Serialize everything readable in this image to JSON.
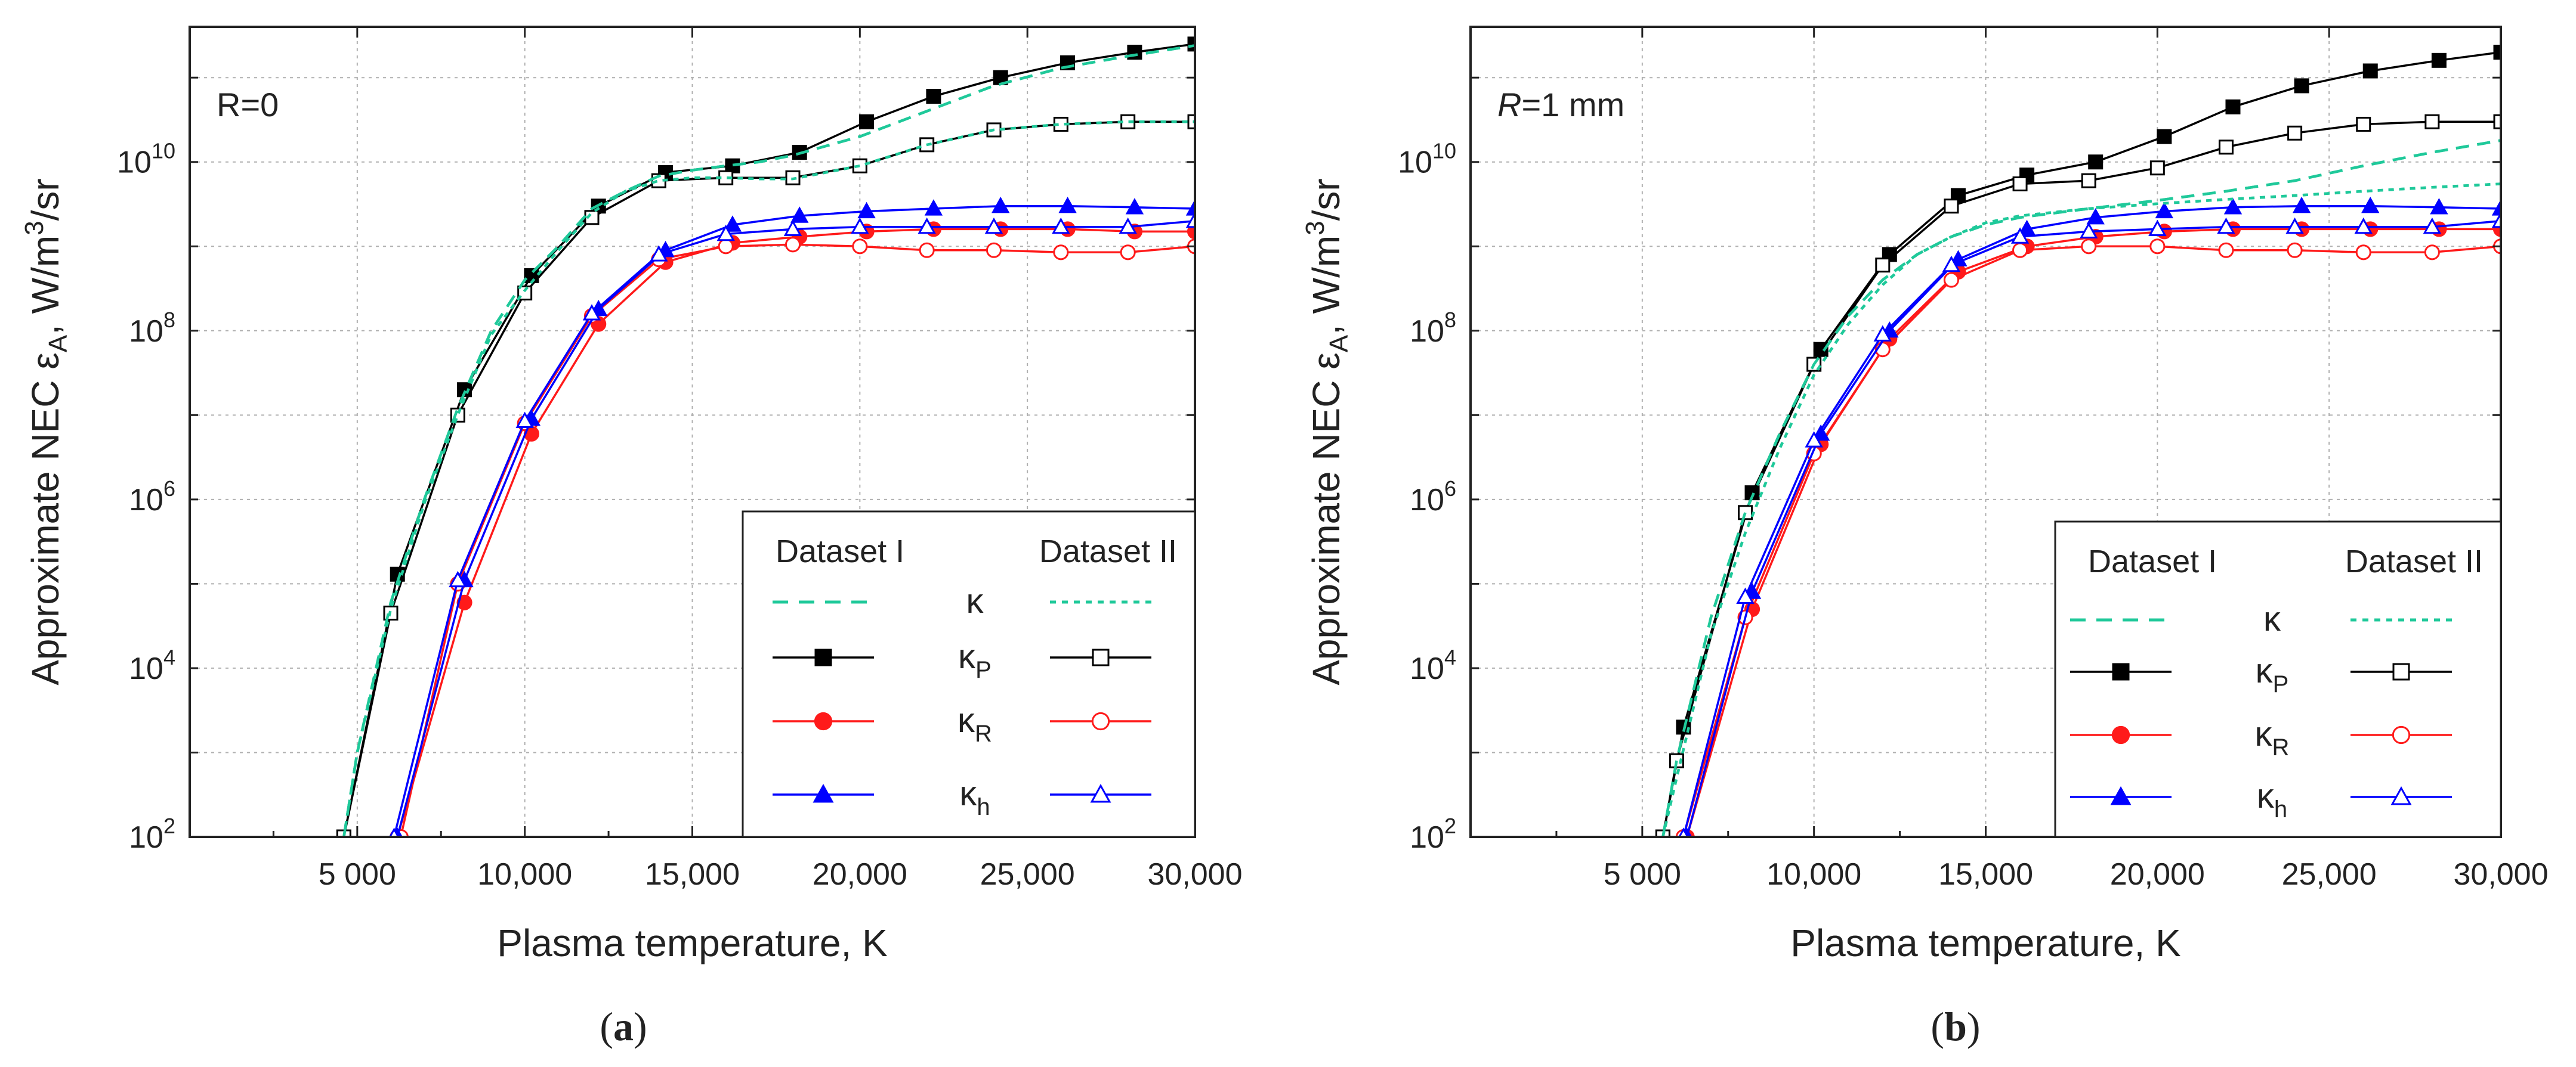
{
  "figure": {
    "captions": [
      "(a)",
      "(b)"
    ],
    "caption_letters": [
      "a",
      "b"
    ]
  },
  "legend": {
    "header_left": "Dataset I",
    "header_right": "Dataset II",
    "symbols": [
      "κ",
      "κP",
      "κR",
      "κh"
    ],
    "symbol_base": "κ",
    "symbol_subscripts": [
      "",
      "P",
      "R",
      "h"
    ]
  },
  "axis_labels": {
    "x": "Plasma temperature, K",
    "y_prefix": "Approximate NEC ε",
    "y_subscript": "A",
    "y_mid": ", W/m",
    "y_superscript": "3",
    "y_suffix": "/sr"
  },
  "colors": {
    "kappa": "#1fc99a",
    "kappa_P": "#000000",
    "kappa_R": "#ff1a1a",
    "kappa_h": "#0000ff",
    "grid": "#b0b0b0"
  },
  "chart_data": [
    {
      "type": "line",
      "panel": "a",
      "annotation": "R=0",
      "annotation_italic": "R",
      "annotation_rest": "=0",
      "xlabel": "Plasma temperature, K",
      "ylabel": "Approximate NEC εA, W/m3/sr",
      "xlim": [
        0,
        30000
      ],
      "ylim": [
        100,
        400000000000
      ],
      "yscale": "log",
      "xticks": [
        5000,
        10000,
        15000,
        20000,
        25000,
        30000
      ],
      "xtick_labels": [
        "5 000",
        "10,000",
        "15,000",
        "20,000",
        "25,000",
        "30,000"
      ],
      "yticks": [
        100,
        10000,
        1000000,
        100000000,
        10000000000
      ],
      "ytick_labels": [
        {
          "base": "10",
          "exp": "2"
        },
        {
          "base": "10",
          "exp": "4"
        },
        {
          "base": "10",
          "exp": "6"
        },
        {
          "base": "10",
          "exp": "8"
        },
        {
          "base": "10",
          "exp": "10"
        }
      ],
      "grid": true,
      "legend_position": "lower-right",
      "series": [
        {
          "name": "κ (Dataset I)",
          "color": "#1fc99a",
          "style": "dashed",
          "marker": "none",
          "x": [
            4600,
            5000,
            6000,
            7000,
            8000,
            9000,
            10000,
            11000,
            12000,
            13000,
            14000,
            15000,
            16000,
            17000,
            18000,
            20000,
            22000,
            24000,
            26000,
            28000,
            30000
          ],
          "y": [
            100,
            1000,
            60000,
            1000000,
            12000000,
            100000000,
            400000000,
            1000000000,
            2800000000,
            4500000000,
            6800000000,
            8000000000,
            9000000000,
            10000000000,
            12000000000,
            20000000000,
            40000000000,
            80000000000,
            130000000000,
            180000000000,
            240000000000
          ]
        },
        {
          "name": "κ (Dataset II)",
          "color": "#1fc99a",
          "style": "dotted",
          "marker": "none",
          "x": [
            4600,
            5000,
            6000,
            7000,
            8000,
            9000,
            10000,
            11000,
            12000,
            13000,
            14000,
            15000,
            16000,
            17000,
            18000,
            20000,
            22000,
            24000,
            26000,
            28000,
            30000
          ],
          "y": [
            100,
            1000,
            50000,
            900000,
            10000000,
            90000000,
            300000000,
            900000000,
            2500000000,
            4500000000,
            6000000000,
            6500000000,
            6500000000,
            6300000000,
            6300000000,
            9000000000,
            16000000000,
            24000000000,
            28000000000,
            30000000000,
            30000000000
          ]
        },
        {
          "name": "κP (Dataset I)",
          "color": "#000000",
          "style": "solid",
          "marker": "filled-square",
          "x": [
            4600,
            6200,
            8200,
            10200,
            12200,
            14200,
            16200,
            18200,
            20200,
            22200,
            24200,
            26200,
            28200,
            30000
          ],
          "y": [
            100,
            130000,
            20000000,
            450000000,
            3000000000,
            7500000000,
            9000000000,
            13000000000,
            30000000000,
            60000000000,
            100000000000,
            150000000000,
            200000000000,
            250000000000
          ]
        },
        {
          "name": "κP (Dataset II)",
          "color": "#000000",
          "style": "solid",
          "marker": "open-square",
          "x": [
            4600,
            6000,
            8000,
            10000,
            12000,
            14000,
            16000,
            18000,
            20000,
            22000,
            24000,
            26000,
            28000,
            30000
          ],
          "y": [
            100,
            45000,
            10000000,
            280000000,
            2200000000,
            6000000000,
            6500000000,
            6500000000,
            9000000000,
            16000000000,
            24000000000,
            28000000000,
            30000000000,
            30000000000
          ]
        },
        {
          "name": "κR (Dataset I)",
          "color": "#ff1a1a",
          "style": "solid",
          "marker": "filled-circle",
          "x": [
            6200,
            8200,
            10200,
            12200,
            14200,
            16200,
            18200,
            20200,
            22200,
            24200,
            26200,
            28200,
            30000
          ],
          "y": [
            100,
            60000,
            6000000,
            120000000,
            650000000,
            1100000000,
            1300000000,
            1500000000,
            1600000000,
            1600000000,
            1600000000,
            1500000000,
            1500000000
          ]
        },
        {
          "name": "κR (Dataset II)",
          "color": "#ff1a1a",
          "style": "solid",
          "marker": "open-circle",
          "x": [
            6300,
            8000,
            10000,
            12000,
            14000,
            16000,
            18000,
            20000,
            22000,
            24000,
            26000,
            28000,
            30000
          ],
          "y": [
            100,
            100000,
            8000000,
            150000000,
            700000000,
            1000000000,
            1050000000,
            1000000000,
            900000000,
            900000000,
            850000000,
            850000000,
            1000000000
          ]
        },
        {
          "name": "κh (Dataset I)",
          "color": "#0000ff",
          "style": "solid",
          "marker": "filled-triangle",
          "x": [
            6200,
            8200,
            10200,
            12200,
            14200,
            16200,
            18200,
            20200,
            22200,
            24200,
            26200,
            28200,
            30000
          ],
          "y": [
            100,
            110000,
            9000000,
            180000000,
            900000000,
            1800000000,
            2300000000,
            2600000000,
            2800000000,
            3000000000,
            3000000000,
            2900000000,
            2800000000
          ]
        },
        {
          "name": "κh (Dataset II)",
          "color": "#0000ff",
          "style": "solid",
          "marker": "open-triangle",
          "x": [
            6100,
            8000,
            10000,
            12000,
            14000,
            16000,
            18000,
            20000,
            22000,
            24000,
            26000,
            28000,
            30000
          ],
          "y": [
            100,
            110000,
            8500000,
            160000000,
            800000000,
            1400000000,
            1600000000,
            1700000000,
            1700000000,
            1700000000,
            1700000000,
            1700000000,
            2000000000
          ]
        }
      ]
    },
    {
      "type": "line",
      "panel": "b",
      "annotation": "R=1 mm",
      "annotation_italic": "R",
      "annotation_rest": "=1 mm",
      "xlabel": "Plasma temperature, K",
      "ylabel": "Approximate NEC εA, W/m3/sr",
      "xlim": [
        0,
        30000
      ],
      "ylim": [
        100,
        400000000000
      ],
      "yscale": "log",
      "xticks": [
        5000,
        10000,
        15000,
        20000,
        25000,
        30000
      ],
      "xtick_labels": [
        "5 000",
        "10,000",
        "15,000",
        "20,000",
        "25,000",
        "30,000"
      ],
      "yticks": [
        100,
        10000,
        1000000,
        100000000,
        10000000000
      ],
      "ytick_labels": [
        {
          "base": "10",
          "exp": "2"
        },
        {
          "base": "10",
          "exp": "4"
        },
        {
          "base": "10",
          "exp": "6"
        },
        {
          "base": "10",
          "exp": "8"
        },
        {
          "base": "10",
          "exp": "10"
        }
      ],
      "grid": true,
      "legend_position": "lower-right",
      "series": [
        {
          "name": "κ (Dataset I)",
          "color": "#1fc99a",
          "style": "dashed",
          "marker": "none",
          "x": [
            5600,
            6000,
            7000,
            8000,
            9000,
            10000,
            11000,
            12000,
            13000,
            14000,
            15000,
            16000,
            18000,
            20000,
            22000,
            24000,
            26000,
            28000,
            30000
          ],
          "y": [
            100,
            800,
            40000,
            700000,
            6000000,
            40000000,
            150000000,
            400000000,
            800000000,
            1300000000,
            1800000000,
            2200000000,
            2800000000,
            3500000000,
            4500000000,
            6000000000,
            9000000000,
            13000000000,
            18000000000
          ]
        },
        {
          "name": "κ (Dataset II)",
          "color": "#1fc99a",
          "style": "dotted",
          "marker": "none",
          "x": [
            5600,
            6000,
            7000,
            8000,
            9000,
            10000,
            11000,
            12000,
            13000,
            14000,
            15000,
            16000,
            18000,
            20000,
            22000,
            24000,
            26000,
            28000,
            30000
          ],
          "y": [
            100,
            500,
            25000,
            400000,
            4000000,
            30000000,
            120000000,
            350000000,
            800000000,
            1300000000,
            1900000000,
            2300000000,
            2800000000,
            3200000000,
            3600000000,
            4000000000,
            4500000000,
            5000000000,
            5500000000
          ]
        },
        {
          "name": "κP (Dataset I)",
          "color": "#000000",
          "style": "solid",
          "marker": "filled-square",
          "x": [
            5600,
            6200,
            8200,
            10200,
            12200,
            14200,
            16200,
            18200,
            20200,
            22200,
            24200,
            26200,
            28200,
            30000
          ],
          "y": [
            100,
            2000,
            1200000,
            60000000,
            800000000,
            4000000000,
            7000000000,
            10000000000,
            20000000000,
            45000000000,
            80000000000,
            120000000000,
            160000000000,
            200000000000
          ]
        },
        {
          "name": "κP (Dataset II)",
          "color": "#000000",
          "style": "solid",
          "marker": "open-square",
          "x": [
            5600,
            6000,
            8000,
            10000,
            12000,
            14000,
            16000,
            18000,
            20000,
            22000,
            24000,
            26000,
            28000,
            30000
          ],
          "y": [
            100,
            800,
            700000,
            40000000,
            600000000,
            3000000000,
            5500000000,
            6000000000,
            8500000000,
            15000000000,
            22000000000,
            28000000000,
            30000000000,
            30000000000
          ]
        },
        {
          "name": "κR (Dataset I)",
          "color": "#ff1a1a",
          "style": "solid",
          "marker": "filled-circle",
          "x": [
            6300,
            8200,
            10200,
            12200,
            14200,
            16200,
            18200,
            20200,
            22200,
            24200,
            26200,
            28200,
            30000
          ],
          "y": [
            100,
            50000,
            4500000,
            80000000,
            500000000,
            1000000000,
            1300000000,
            1500000000,
            1600000000,
            1600000000,
            1600000000,
            1600000000,
            1600000000
          ]
        },
        {
          "name": "κR (Dataset II)",
          "color": "#ff1a1a",
          "style": "solid",
          "marker": "open-circle",
          "x": [
            6200,
            8000,
            10000,
            12000,
            14000,
            16000,
            18000,
            20000,
            22000,
            24000,
            26000,
            28000,
            30000
          ],
          "y": [
            100,
            40000,
            3500000,
            60000000,
            400000000,
            900000000,
            1000000000,
            1000000000,
            900000000,
            900000000,
            850000000,
            850000000,
            1000000000
          ]
        },
        {
          "name": "κh (Dataset I)",
          "color": "#0000ff",
          "style": "solid",
          "marker": "filled-triangle",
          "x": [
            6300,
            8200,
            10200,
            12200,
            14200,
            16200,
            18200,
            20200,
            22200,
            24200,
            26200,
            28200,
            30000
          ],
          "y": [
            100,
            80000,
            6000000,
            100000000,
            700000000,
            1600000000,
            2200000000,
            2600000000,
            2900000000,
            3000000000,
            3000000000,
            2900000000,
            2800000000
          ]
        },
        {
          "name": "κh (Dataset II)",
          "color": "#0000ff",
          "style": "solid",
          "marker": "open-triangle",
          "x": [
            6200,
            8000,
            10000,
            12000,
            14000,
            16000,
            18000,
            20000,
            22000,
            24000,
            26000,
            28000,
            30000
          ],
          "y": [
            100,
            70000,
            5000000,
            90000000,
            600000000,
            1300000000,
            1500000000,
            1600000000,
            1700000000,
            1700000000,
            1700000000,
            1700000000,
            2000000000
          ]
        }
      ]
    }
  ]
}
